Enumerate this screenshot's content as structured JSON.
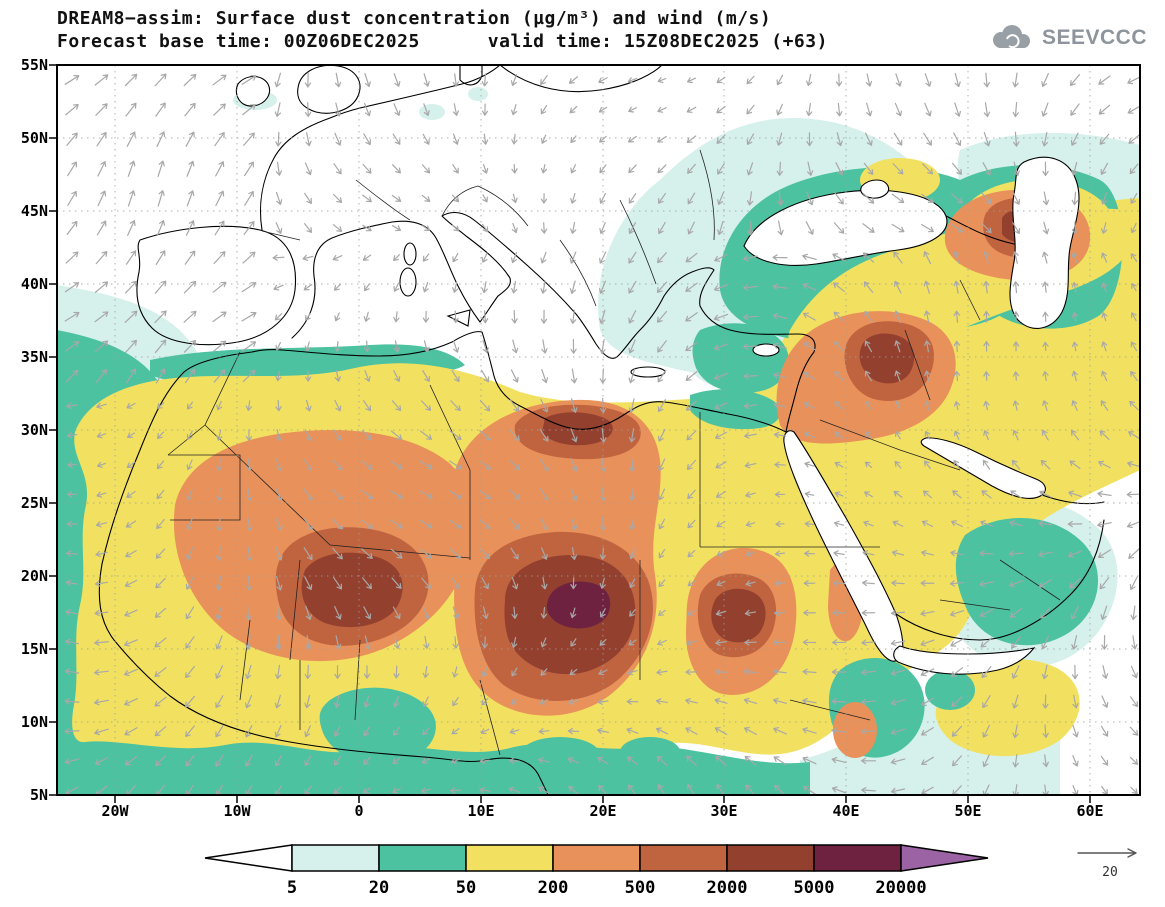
{
  "header": {
    "title_line1": "DREAM8−assim: Surface dust concentration (µg/m³) and wind (m/s)",
    "title_line2": "Forecast base time: 00Z06DEC2025      valid time: 15Z08DEC2025 (+63)",
    "logo_text": "SEEVCCC"
  },
  "icons": {
    "logo": "cloud-icon"
  },
  "axes": {
    "lat": [
      "55N",
      "50N",
      "45N",
      "40N",
      "35N",
      "30N",
      "25N",
      "20N",
      "15N",
      "10N",
      "5N"
    ],
    "lon": [
      "20W",
      "10W",
      "0",
      "10E",
      "20E",
      "30E",
      "40E",
      "50E",
      "60E"
    ]
  },
  "legend": {
    "values": [
      "5",
      "20",
      "50",
      "200",
      "500",
      "2000",
      "5000",
      "20000"
    ],
    "colors": {
      "lt5": "#ffffff",
      "c5_20": "#d6f0ec",
      "c20_50": "#4cc2a0",
      "c50_200": "#f2e160",
      "c200_500": "#e9915a",
      "c500_2000": "#c06440",
      "c2000_5000": "#93402f",
      "c5000_20000": "#6e2240",
      "gt20000": "#9c63a4",
      "wind_arrow": "#a8a8a8"
    },
    "wind_reference": "20"
  }
}
